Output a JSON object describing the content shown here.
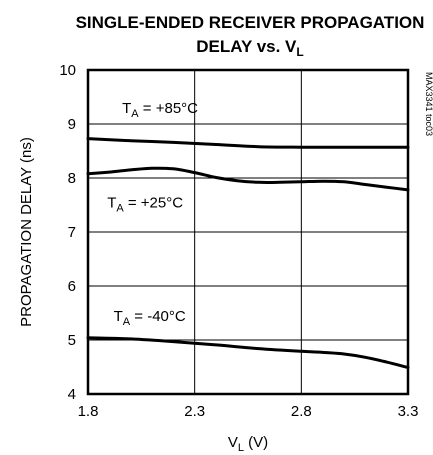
{
  "chart_data": {
    "type": "line",
    "title": "SINGLE-ENDED RECEIVER PROPAGATION DELAY vs. VL",
    "title_lines": [
      "SINGLE-ENDED RECEIVER PROPAGATION",
      "DELAY vs. V",
      "L"
    ],
    "xlabel": {
      "main": "V",
      "sub": "L",
      "unit": " (V)"
    },
    "ylabel": "PROPAGATION DELAY (ns)",
    "xlim": [
      1.8,
      3.3
    ],
    "ylim": [
      4,
      10
    ],
    "xticks": [
      "1.8",
      "2.3",
      "2.8",
      "3.3"
    ],
    "yticks": [
      "4",
      "5",
      "6",
      "7",
      "8",
      "9",
      "10"
    ],
    "grid": true,
    "watermark": "MAX3341 toc03",
    "series": [
      {
        "name": "TA = +85°C",
        "label": {
          "main": "T",
          "sub": "A",
          "rest": " = +85°C"
        },
        "x": [
          1.8,
          2.0,
          2.2,
          2.4,
          2.6,
          2.8,
          3.0,
          3.2,
          3.3
        ],
        "y": [
          8.73,
          8.69,
          8.66,
          8.62,
          8.58,
          8.57,
          8.57,
          8.57,
          8.57
        ]
      },
      {
        "name": "TA = +25°C",
        "label": {
          "main": "T",
          "sub": "A",
          "rest": " = +25°C"
        },
        "x": [
          1.8,
          1.9,
          2.0,
          2.1,
          2.2,
          2.3,
          2.4,
          2.5,
          2.6,
          2.7,
          2.8,
          2.9,
          3.0,
          3.1,
          3.2,
          3.3
        ],
        "y": [
          8.08,
          8.11,
          8.15,
          8.18,
          8.17,
          8.1,
          8.01,
          7.95,
          7.92,
          7.92,
          7.93,
          7.94,
          7.93,
          7.88,
          7.83,
          7.78
        ]
      },
      {
        "name": "TA = -40°C",
        "label": {
          "main": "T",
          "sub": "A",
          "rest": " = -40°C"
        },
        "x": [
          1.8,
          2.0,
          2.2,
          2.4,
          2.6,
          2.8,
          2.9,
          3.0,
          3.1,
          3.2,
          3.3
        ],
        "y": [
          5.04,
          5.02,
          4.97,
          4.91,
          4.84,
          4.79,
          4.77,
          4.74,
          4.68,
          4.59,
          4.49
        ]
      }
    ]
  }
}
